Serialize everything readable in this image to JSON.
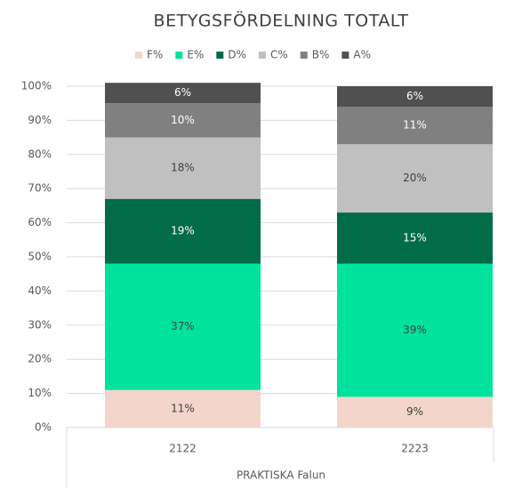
{
  "chart_data": {
    "type": "stacked_bar",
    "title": "BETYGSFÖRDELNING TOTALT",
    "x_label": "PRAKTISKA Falun",
    "categories": [
      "2122",
      "2223"
    ],
    "series": [
      {
        "name": "F%",
        "color": "#f4d5cc",
        "values": [
          11,
          9
        ],
        "value_labels": [
          "11%",
          "9%"
        ]
      },
      {
        "name": "E%",
        "color": "#00e29d",
        "values": [
          37,
          39
        ],
        "value_labels": [
          "37%",
          "39%"
        ]
      },
      {
        "name": "D%",
        "color": "#006c48",
        "values": [
          19,
          15
        ],
        "value_labels": [
          "19%",
          "15%"
        ]
      },
      {
        "name": "C%",
        "color": "#c0c0c0",
        "values": [
          18,
          20
        ],
        "value_labels": [
          "18%",
          "20%"
        ]
      },
      {
        "name": "B%",
        "color": "#808080",
        "values": [
          10,
          11
        ],
        "value_labels": [
          "10%",
          "11%"
        ]
      },
      {
        "name": "A%",
        "color": "#505050",
        "values": [
          6,
          6
        ],
        "value_labels": [
          "6%",
          "6%"
        ]
      }
    ],
    "ylim": [
      0,
      100
    ],
    "yticks": [
      {
        "value": 0,
        "label": "0%"
      },
      {
        "value": 10,
        "label": "10%"
      },
      {
        "value": 20,
        "label": "20%"
      },
      {
        "value": 30,
        "label": "30%"
      },
      {
        "value": 40,
        "label": "40%"
      },
      {
        "value": 50,
        "label": "50%"
      },
      {
        "value": 60,
        "label": "60%"
      },
      {
        "value": 70,
        "label": "70%"
      },
      {
        "value": 80,
        "label": "80%"
      },
      {
        "value": 90,
        "label": "90%"
      },
      {
        "value": 100,
        "label": "100%"
      }
    ],
    "grid": true,
    "legend": "top"
  }
}
